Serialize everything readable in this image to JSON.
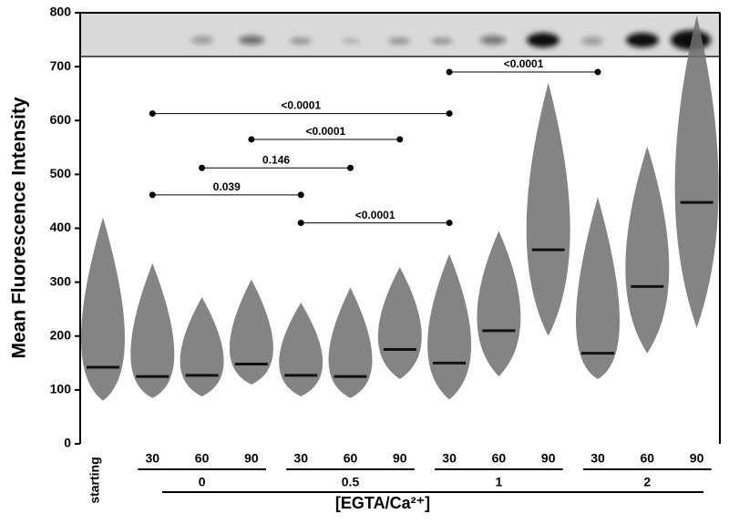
{
  "chart_data": {
    "type": "swarm",
    "y_label": "Mean Fluorescence Intensity",
    "x_label": "[EGTA/Ca²⁺]",
    "ylim": [
      0,
      800
    ],
    "yticks": [
      0,
      100,
      200,
      300,
      400,
      500,
      600,
      700,
      800
    ],
    "color": "#6e6e6e",
    "median_color": "#111111",
    "groups": [
      {
        "name": null,
        "categories": [
          "starting"
        ],
        "median": [
          142
        ],
        "min": [
          80
        ],
        "max": [
          420
        ]
      },
      {
        "name": "0",
        "categories": [
          "30",
          "60",
          "90"
        ],
        "median": [
          125,
          127,
          148
        ],
        "min": [
          85,
          88,
          110
        ],
        "max": [
          335,
          272,
          305
        ]
      },
      {
        "name": "0.5",
        "categories": [
          "30",
          "60",
          "90"
        ],
        "median": [
          127,
          125,
          175
        ],
        "min": [
          88,
          85,
          120
        ],
        "max": [
          262,
          290,
          328
        ]
      },
      {
        "name": "1",
        "categories": [
          "30",
          "60",
          "90"
        ],
        "median": [
          150,
          210,
          360
        ],
        "min": [
          82,
          125,
          200
        ],
        "max": [
          352,
          395,
          670
        ]
      },
      {
        "name": "2",
        "categories": [
          "30",
          "60",
          "90"
        ],
        "median": [
          168,
          292,
          448
        ],
        "min": [
          120,
          168,
          215
        ],
        "max": [
          458,
          552,
          795
        ]
      }
    ],
    "comparisons": [
      {
        "label": "<0.0001",
        "y": 690,
        "from": {
          "group": "1",
          "category": "30"
        },
        "to": {
          "group": "2",
          "category": "30"
        }
      },
      {
        "label": "<0.0001",
        "y": 613,
        "from": {
          "group": "0",
          "category": "30"
        },
        "to": {
          "group": "1",
          "category": "30"
        }
      },
      {
        "label": "<0.0001",
        "y": 565,
        "from": {
          "group": "0",
          "category": "90"
        },
        "to": {
          "group": "0.5",
          "category": "90"
        }
      },
      {
        "label": "0.146",
        "y": 512,
        "from": {
          "group": "0",
          "category": "60"
        },
        "to": {
          "group": "0.5",
          "category": "60"
        }
      },
      {
        "label": "0.039",
        "y": 462,
        "from": {
          "group": "0",
          "category": "30"
        },
        "to": {
          "group": "0.5",
          "category": "30"
        }
      },
      {
        "label": "<0.0001",
        "y": 410,
        "from": {
          "group": "0.5",
          "category": "30"
        },
        "to": {
          "group": "1",
          "category": "30"
        }
      }
    ]
  }
}
